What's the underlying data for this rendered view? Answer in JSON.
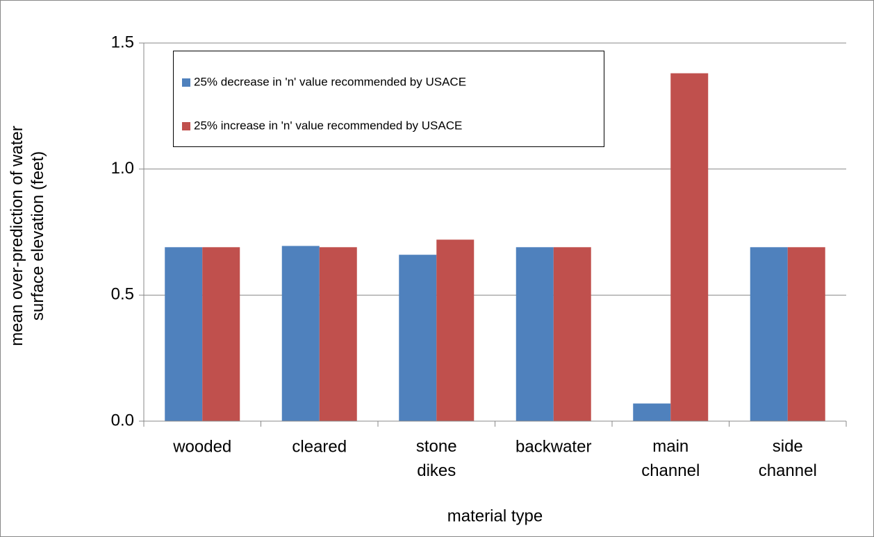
{
  "chart_data": {
    "type": "bar",
    "y_label": "mean over-prediction of water\nsurface elevation (feet)",
    "x_label": "material type",
    "categories": [
      "wooded",
      "cleared",
      "stone\ndikes",
      "backwater",
      "main\nchannel",
      "side\nchannel"
    ],
    "series": [
      {
        "name": "25% decrease in 'n' value recommended by USACE",
        "color": "#4f81bd",
        "values": [
          0.69,
          0.695,
          0.66,
          0.69,
          0.07,
          0.69
        ]
      },
      {
        "name": "25% increase in 'n' value recommended by USACE",
        "color": "#c0504d",
        "values": [
          0.69,
          0.69,
          0.72,
          0.69,
          1.38,
          0.69
        ]
      }
    ],
    "ylim": [
      0,
      1.5
    ],
    "yticks": [
      {
        "value": 0,
        "label": "0.0"
      },
      0.5,
      {
        "value": 1,
        "label": "1.0"
      },
      1.5
    ],
    "grid": true,
    "legend": "upper-left"
  }
}
